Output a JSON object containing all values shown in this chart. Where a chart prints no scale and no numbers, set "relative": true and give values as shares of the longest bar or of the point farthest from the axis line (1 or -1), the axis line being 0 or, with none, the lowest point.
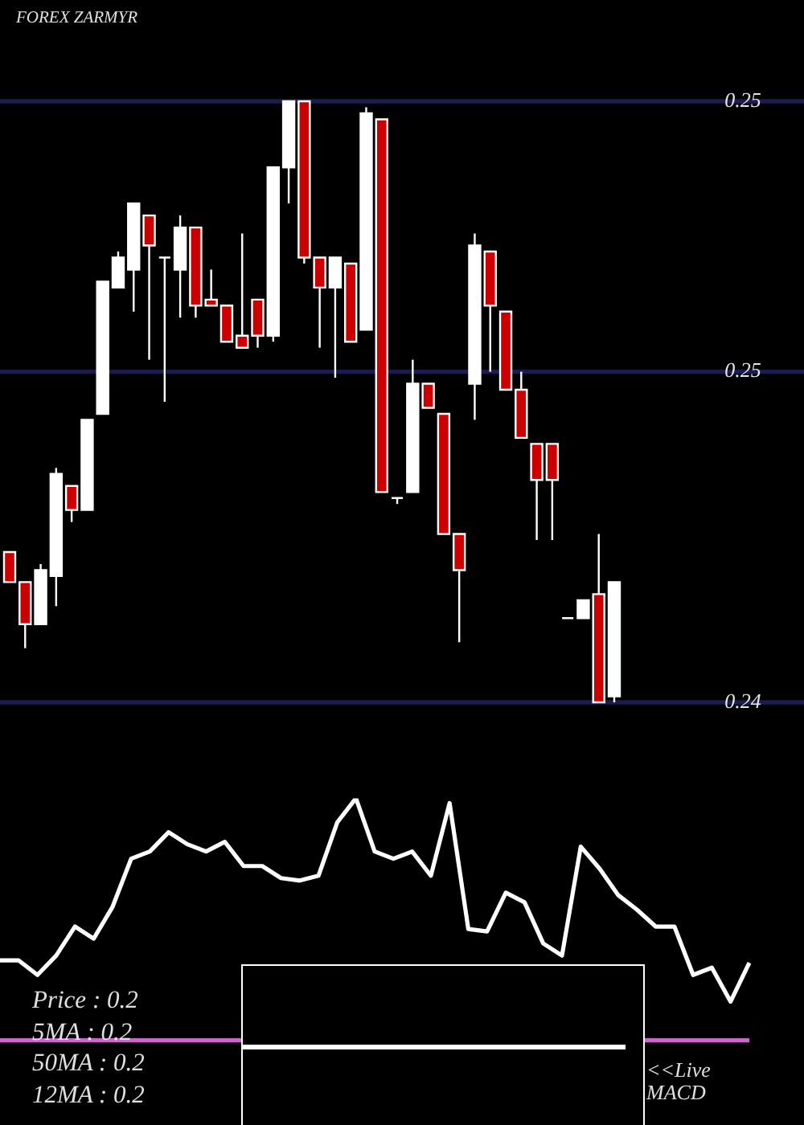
{
  "chart_data": [
    {
      "type": "candlestick",
      "title": "FOREX ZARMYR",
      "categories": [
        null,
        null,
        null,
        null,
        null,
        null,
        null,
        null,
        null,
        null,
        null,
        null,
        null,
        null,
        null,
        null,
        null,
        null,
        null,
        null,
        null,
        null,
        null,
        null,
        null,
        null,
        null,
        null,
        null,
        null,
        null,
        null,
        null,
        null,
        null,
        null,
        null,
        null,
        null,
        null
      ],
      "ohlc": [
        [
          0.246,
          0.246,
          0.2455,
          0.2455
        ],
        [
          0.2455,
          0.2455,
          0.2444,
          0.2448
        ],
        [
          0.2448,
          0.2458,
          0.2448,
          0.2457
        ],
        [
          0.2456,
          0.2474,
          0.2451,
          0.2473
        ],
        [
          0.2471,
          0.2471,
          0.2465,
          0.2467
        ],
        [
          0.2467,
          0.2482,
          0.2467,
          0.2482
        ],
        [
          0.2483,
          0.2505,
          0.2483,
          0.2505
        ],
        [
          0.2504,
          0.251,
          0.2504,
          0.2509
        ],
        [
          0.2507,
          0.2518,
          0.25,
          0.2518
        ],
        [
          0.2516,
          0.2516,
          0.2492,
          0.2511
        ],
        [
          0.2509,
          0.2509,
          0.2485,
          0.2509
        ],
        [
          0.2507,
          0.2516,
          0.2499,
          0.2514
        ],
        [
          0.2514,
          0.2514,
          0.2499,
          0.2501
        ],
        [
          0.2502,
          0.2507,
          0.2501,
          0.2501
        ],
        [
          0.2501,
          0.2501,
          0.2495,
          0.2495
        ],
        [
          0.2496,
          0.2513,
          0.2494,
          0.2494
        ],
        [
          0.2502,
          0.2502,
          0.2494,
          0.2496
        ],
        [
          0.2496,
          0.2524,
          0.2495,
          0.2524
        ],
        [
          0.2524,
          0.2535,
          0.2518,
          0.2535
        ],
        [
          0.2535,
          0.2535,
          0.2508,
          0.2509
        ],
        [
          0.2509,
          0.2509,
          0.2494,
          0.2504
        ],
        [
          0.2504,
          0.2509,
          0.2489,
          0.2509
        ],
        [
          0.2508,
          0.2508,
          0.2495,
          0.2495
        ],
        [
          0.2497,
          0.2534,
          0.2497,
          0.2533
        ],
        [
          0.2532,
          0.2532,
          0.247,
          0.247
        ],
        [
          0.2469,
          0.2469,
          0.2468,
          0.2469
        ],
        [
          0.247,
          0.2492,
          0.247,
          0.2488
        ],
        [
          0.2488,
          0.2488,
          0.2484,
          0.2484
        ],
        [
          0.2483,
          0.2483,
          0.2463,
          0.2463
        ],
        [
          0.2463,
          0.2463,
          0.2445,
          0.2457
        ],
        [
          0.2488,
          0.2513,
          0.2482,
          0.2511
        ],
        [
          0.251,
          0.251,
          0.249,
          0.2501
        ],
        [
          0.25,
          0.25,
          0.2487,
          0.2487
        ],
        [
          0.2487,
          0.249,
          0.2479,
          0.2479
        ],
        [
          0.2478,
          0.2478,
          0.2462,
          0.2472
        ],
        [
          0.2478,
          0.2478,
          0.2462,
          0.2472
        ],
        [
          0.2449,
          0.2449,
          0.2449,
          0.2449
        ],
        [
          0.2449,
          0.2452,
          0.2449,
          0.2452
        ],
        [
          0.2453,
          0.2463,
          0.2435,
          0.2435
        ],
        [
          0.2436,
          0.2455,
          0.2435,
          0.2455
        ]
      ],
      "colors": [
        "#cc0000",
        "#cc0000",
        "#ffffff",
        "#ffffff",
        "#cc0000",
        "#ffffff",
        "#ffffff",
        "#ffffff",
        "#ffffff",
        "#cc0000",
        "#ffffff",
        "#ffffff",
        "#cc0000",
        "#cc0000",
        "#cc0000",
        "#cc0000",
        "#cc0000",
        "#ffffff",
        "#ffffff",
        "#cc0000",
        "#cc0000",
        "#ffffff",
        "#cc0000",
        "#ffffff",
        "#cc0000",
        "#ffffff",
        "#ffffff",
        "#cc0000",
        "#cc0000",
        "#cc0000",
        "#ffffff",
        "#cc0000",
        "#cc0000",
        "#cc0000",
        "#cc0000",
        "#cc0000",
        "#ffffff",
        "#ffffff",
        "#cc0000",
        "#ffffff"
      ],
      "ylim": [
        0.2435,
        0.2535
      ],
      "yticks": [
        {
          "value": 0.2435,
          "label": "0.24"
        },
        {
          "value": 0.249,
          "label": "0.25"
        },
        {
          "value": 0.2535,
          "label": "0.25"
        }
      ],
      "ref_lines": [
        {
          "axis": "y",
          "value": 0.2535,
          "color": "#1c1c50"
        },
        {
          "axis": "y",
          "value": 0.249,
          "color": "#1c1c50"
        },
        {
          "axis": "y",
          "value": 0.2435,
          "color": "#1c1c50"
        }
      ]
    },
    {
      "type": "line",
      "relative": true,
      "categories": [
        null,
        null,
        null,
        null,
        null,
        null,
        null,
        null,
        null,
        null,
        null,
        null,
        null,
        null,
        null,
        null,
        null,
        null,
        null,
        null,
        null,
        null,
        null,
        null,
        null,
        null,
        null,
        null,
        null,
        null,
        null,
        null,
        null,
        null,
        null,
        null,
        null,
        null,
        null,
        null,
        null
      ],
      "series": [
        {
          "color": "#ffffff",
          "values": [
            0.33,
            0.33,
            0.27,
            0.35,
            0.47,
            0.42,
            0.55,
            0.75,
            0.78,
            0.86,
            0.81,
            0.78,
            0.82,
            0.72,
            0.72,
            0.67,
            0.66,
            0.68,
            0.9,
            1,
            0.78,
            0.75,
            0.78,
            0.68,
            0.98,
            0.46,
            0.45,
            0.61,
            0.57,
            0.4,
            0.35,
            0.8,
            0.71,
            0.6,
            0.54,
            0.47,
            0.47,
            0.27,
            0.3,
            0.16,
            0.32
          ]
        }
      ],
      "ref_lines": [
        {
          "axis": "y",
          "value": 0,
          "color": "#cc66cc"
        }
      ],
      "annotations": [
        "Price : 0.2",
        "5MA : 0.2",
        "50MA : 0.2",
        "12MA : 0.2"
      ]
    },
    {
      "type": "other",
      "annotations": [
        "<<Live MACD"
      ]
    }
  ]
}
